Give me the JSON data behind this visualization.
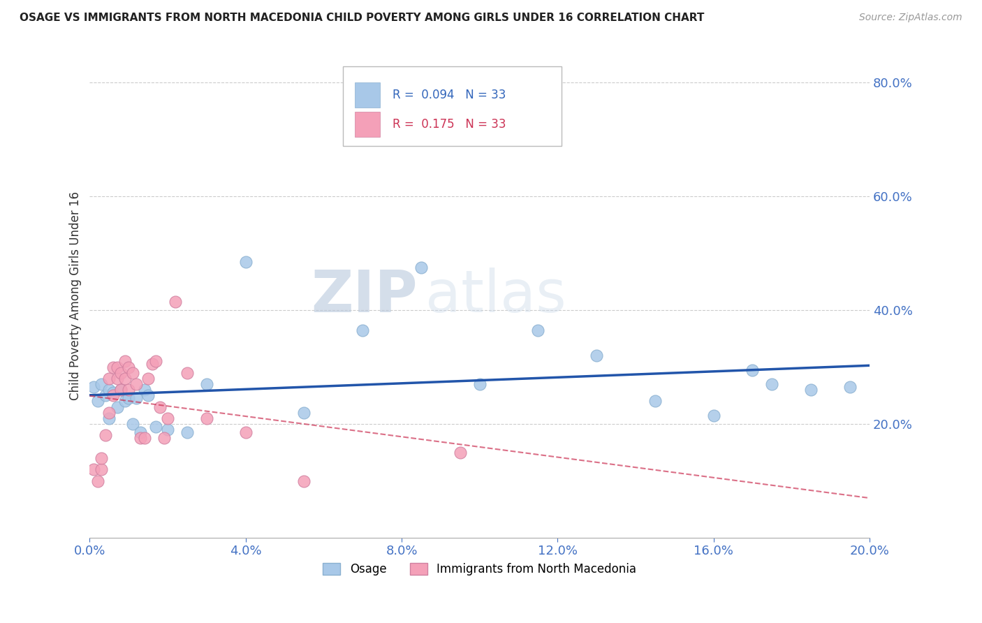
{
  "title": "OSAGE VS IMMIGRANTS FROM NORTH MACEDONIA CHILD POVERTY AMONG GIRLS UNDER 16 CORRELATION CHART",
  "source": "Source: ZipAtlas.com",
  "ylabel": "Child Poverty Among Girls Under 16",
  "xlabel": "",
  "legend_entries": [
    "Osage",
    "Immigrants from North Macedonia"
  ],
  "r_osage": "0.094",
  "r_immig": "0.175",
  "n_osage": "33",
  "n_immig": "33",
  "color_osage": "#a8c8e8",
  "color_immig": "#f4a0b8",
  "trendline_osage": "#2255aa",
  "trendline_immig": "#cc3355",
  "background": "#ffffff",
  "watermark": "ZIPatlas",
  "xlim": [
    0.0,
    0.2
  ],
  "ylim": [
    0.0,
    0.85
  ],
  "x_ticks": [
    0.0,
    0.04,
    0.08,
    0.12,
    0.16,
    0.2
  ],
  "y_ticks": [
    0.2,
    0.4,
    0.6,
    0.8
  ],
  "osage_x": [
    0.001,
    0.002,
    0.003,
    0.004,
    0.005,
    0.005,
    0.006,
    0.007,
    0.008,
    0.009,
    0.01,
    0.011,
    0.012,
    0.013,
    0.014,
    0.015,
    0.017,
    0.02,
    0.025,
    0.03,
    0.04,
    0.055,
    0.07,
    0.085,
    0.1,
    0.115,
    0.13,
    0.145,
    0.16,
    0.17,
    0.175,
    0.185,
    0.195
  ],
  "osage_y": [
    0.265,
    0.24,
    0.27,
    0.25,
    0.26,
    0.21,
    0.255,
    0.23,
    0.26,
    0.24,
    0.245,
    0.2,
    0.245,
    0.185,
    0.26,
    0.25,
    0.195,
    0.19,
    0.185,
    0.27,
    0.485,
    0.22,
    0.365,
    0.475,
    0.27,
    0.365,
    0.32,
    0.24,
    0.215,
    0.295,
    0.27,
    0.26,
    0.265
  ],
  "immig_x": [
    0.001,
    0.002,
    0.003,
    0.003,
    0.004,
    0.005,
    0.005,
    0.006,
    0.006,
    0.007,
    0.007,
    0.008,
    0.008,
    0.009,
    0.009,
    0.01,
    0.01,
    0.011,
    0.012,
    0.013,
    0.014,
    0.015,
    0.016,
    0.017,
    0.018,
    0.019,
    0.02,
    0.022,
    0.025,
    0.03,
    0.04,
    0.055,
    0.095
  ],
  "immig_y": [
    0.12,
    0.1,
    0.12,
    0.14,
    0.18,
    0.22,
    0.28,
    0.25,
    0.3,
    0.28,
    0.3,
    0.26,
    0.29,
    0.28,
    0.31,
    0.26,
    0.3,
    0.29,
    0.27,
    0.175,
    0.175,
    0.28,
    0.305,
    0.31,
    0.23,
    0.175,
    0.21,
    0.415,
    0.29,
    0.21,
    0.185,
    0.1,
    0.15
  ]
}
